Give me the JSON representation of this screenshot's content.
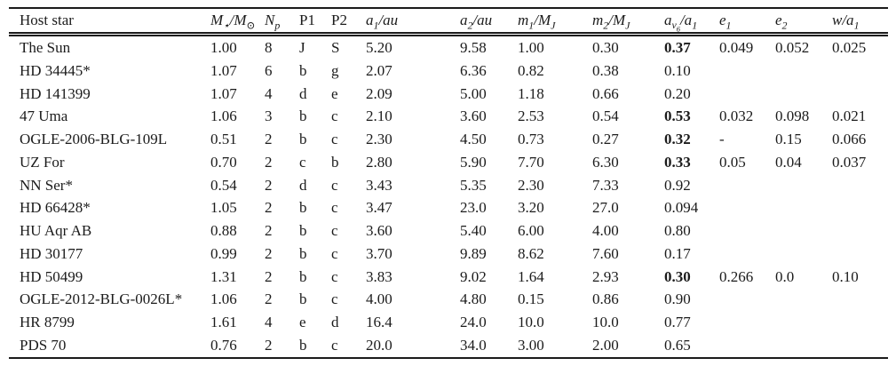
{
  "page": {
    "background": "#ffffff",
    "text_color": "#1b1b1b",
    "rule_color": "#1b1b1b"
  },
  "table": {
    "columns": [
      {
        "key": "host",
        "label": "Host star",
        "math": false
      },
      {
        "key": "m_star",
        "label": "M_{⋆}/M_{⊙}",
        "math": true
      },
      {
        "key": "n_p",
        "label": "N_{p}",
        "math": true
      },
      {
        "key": "p1",
        "label": "P1",
        "math": false
      },
      {
        "key": "p2",
        "label": "P2",
        "math": false
      },
      {
        "key": "a1",
        "label": "a_{1}/au",
        "math": true
      },
      {
        "key": "a2",
        "label": "a_{2}/au",
        "math": true
      },
      {
        "key": "m1",
        "label": "m_{1}/M_{J}",
        "math": true
      },
      {
        "key": "m2",
        "label": "m_{2}/M_{J}",
        "math": true
      },
      {
        "key": "a_nu6",
        "label": "a_{ν_{6}}/a_{1}",
        "math": true
      },
      {
        "key": "e1",
        "label": "e_{1}",
        "math": true
      },
      {
        "key": "e2",
        "label": "e_{2}",
        "math": true
      },
      {
        "key": "w",
        "label": "w/a_{1}",
        "math": true
      }
    ],
    "rows": [
      {
        "host": "The Sun",
        "m_star": "1.00",
        "n_p": "8",
        "p1": "J",
        "p2": "S",
        "a1": "5.20",
        "a2": "9.58",
        "m1": "1.00",
        "m2": "0.30",
        "a_nu6": "0.37",
        "a_nu6_bold": true,
        "e1": "0.049",
        "e2": "0.052",
        "w": "0.025"
      },
      {
        "host": "HD 34445*",
        "m_star": "1.07",
        "n_p": "6",
        "p1": "b",
        "p2": "g",
        "a1": "2.07",
        "a2": "6.36",
        "m1": "0.82",
        "m2": "0.38",
        "a_nu6": "0.10",
        "a_nu6_bold": false,
        "e1": "",
        "e2": "",
        "w": ""
      },
      {
        "host": "HD 141399",
        "m_star": "1.07",
        "n_p": "4",
        "p1": "d",
        "p2": "e",
        "a1": "2.09",
        "a2": "5.00",
        "m1": "1.18",
        "m2": "0.66",
        "a_nu6": "0.20",
        "a_nu6_bold": false,
        "e1": "",
        "e2": "",
        "w": ""
      },
      {
        "host": "47 Uma",
        "m_star": "1.06",
        "n_p": "3",
        "p1": "b",
        "p2": "c",
        "a1": "2.10",
        "a2": "3.60",
        "m1": "2.53",
        "m2": "0.54",
        "a_nu6": "0.53",
        "a_nu6_bold": true,
        "e1": "0.032",
        "e2": "0.098",
        "w": "0.021"
      },
      {
        "host": "OGLE-2006-BLG-109L",
        "m_star": "0.51",
        "n_p": "2",
        "p1": "b",
        "p2": "c",
        "a1": "2.30",
        "a2": "4.50",
        "m1": "0.73",
        "m2": "0.27",
        "a_nu6": "0.32",
        "a_nu6_bold": true,
        "e1": "-",
        "e2": "0.15",
        "w": "0.066"
      },
      {
        "host": "UZ For",
        "m_star": "0.70",
        "n_p": "2",
        "p1": "c",
        "p2": "b",
        "a1": "2.80",
        "a2": "5.90",
        "m1": "7.70",
        "m2": "6.30",
        "a_nu6": "0.33",
        "a_nu6_bold": true,
        "e1": "0.05",
        "e2": "0.04",
        "w": "0.037"
      },
      {
        "host": "NN Ser*",
        "m_star": "0.54",
        "n_p": "2",
        "p1": "d",
        "p2": "c",
        "a1": "3.43",
        "a2": "5.35",
        "m1": "2.30",
        "m2": "7.33",
        "a_nu6": "0.92",
        "a_nu6_bold": false,
        "e1": "",
        "e2": "",
        "w": ""
      },
      {
        "host": "HD 66428*",
        "m_star": "1.05",
        "n_p": "2",
        "p1": "b",
        "p2": "c",
        "a1": "3.47",
        "a2": "23.0",
        "m1": "3.20",
        "m2": "27.0",
        "a_nu6": "0.094",
        "a_nu6_bold": false,
        "e1": "",
        "e2": "",
        "w": ""
      },
      {
        "host": "HU Aqr AB",
        "m_star": "0.88",
        "n_p": "2",
        "p1": "b",
        "p2": "c",
        "a1": "3.60",
        "a2": "5.40",
        "m1": "6.00",
        "m2": "4.00",
        "a_nu6": "0.80",
        "a_nu6_bold": false,
        "e1": "",
        "e2": "",
        "w": ""
      },
      {
        "host": "HD 30177",
        "m_star": "0.99",
        "n_p": "2",
        "p1": "b",
        "p2": "c",
        "a1": "3.70",
        "a2": "9.89",
        "m1": "8.62",
        "m2": "7.60",
        "a_nu6": "0.17",
        "a_nu6_bold": false,
        "e1": "",
        "e2": "",
        "w": ""
      },
      {
        "host": "HD 50499",
        "m_star": "1.31",
        "n_p": "2",
        "p1": "b",
        "p2": "c",
        "a1": "3.83",
        "a2": "9.02",
        "m1": "1.64",
        "m2": "2.93",
        "a_nu6": "0.30",
        "a_nu6_bold": true,
        "e1": "0.266",
        "e2": "0.0",
        "w": "0.10"
      },
      {
        "host": "OGLE-2012-BLG-0026L*",
        "m_star": "1.06",
        "n_p": "2",
        "p1": "b",
        "p2": "c",
        "a1": "4.00",
        "a2": "4.80",
        "m1": "0.15",
        "m2": "0.86",
        "a_nu6": "0.90",
        "a_nu6_bold": false,
        "e1": "",
        "e2": "",
        "w": ""
      },
      {
        "host": "HR 8799",
        "m_star": "1.61",
        "n_p": "4",
        "p1": "e",
        "p2": "d",
        "a1": "16.4",
        "a2": "24.0",
        "m1": "10.0",
        "m2": "10.0",
        "a_nu6": "0.77",
        "a_nu6_bold": false,
        "e1": "",
        "e2": "",
        "w": ""
      },
      {
        "host": "PDS 70",
        "m_star": "0.76",
        "n_p": "2",
        "p1": "b",
        "p2": "c",
        "a1": "20.0",
        "a2": "34.0",
        "m1": "3.00",
        "m2": "2.00",
        "a_nu6": "0.65",
        "a_nu6_bold": false,
        "e1": "",
        "e2": "",
        "w": ""
      }
    ]
  }
}
